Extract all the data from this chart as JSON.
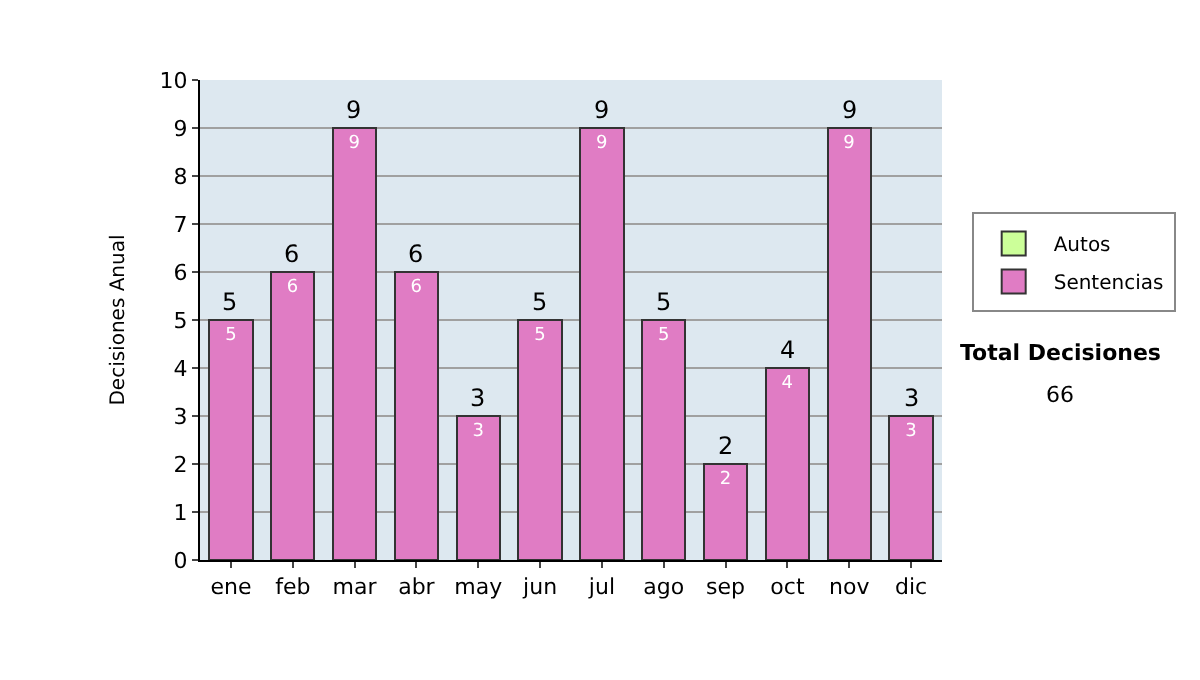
{
  "chart_data": {
    "type": "bar",
    "stacked": true,
    "ylabel": "Decisiones Anual",
    "categories": [
      "ene",
      "feb",
      "mar",
      "abr",
      "may",
      "jun",
      "jul",
      "ago",
      "sep",
      "oct",
      "nov",
      "dic"
    ],
    "series": [
      {
        "name": "Sentencias",
        "color": "#e07cc4",
        "values": [
          5,
          6,
          9,
          6,
          3,
          5,
          9,
          5,
          2,
          4,
          9,
          3
        ]
      },
      {
        "name": "Autos",
        "color": "#ccff99",
        "values": [
          null,
          null,
          null,
          null,
          null,
          null,
          null,
          null,
          null,
          null,
          null,
          null
        ]
      }
    ],
    "data_labels": true,
    "totals": [
      "5",
      "6",
      "9",
      "6",
      "3",
      "5",
      "9",
      "5",
      "2",
      "4",
      "9",
      "3"
    ],
    "ylim": [
      0,
      10
    ],
    "yticks": [
      0,
      1,
      2,
      3,
      4,
      5,
      6,
      7,
      8,
      9,
      10
    ],
    "grid": "y",
    "legend": "right",
    "annotations": [
      "Total Decisiones",
      "66"
    ]
  }
}
